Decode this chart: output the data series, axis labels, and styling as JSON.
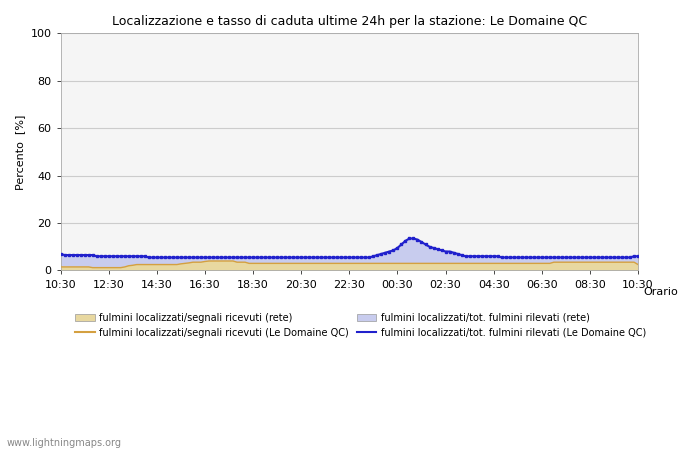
{
  "title": "Localizzazione e tasso di caduta ultime 24h per la stazione: Le Domaine QC",
  "ylabel": "Percento  [%]",
  "xlabel": "Orario",
  "ylim": [
    0,
    100
  ],
  "yticks": [
    0,
    20,
    40,
    60,
    80,
    100
  ],
  "yticks_minor": [
    10,
    30,
    50,
    70,
    90
  ],
  "xtick_labels": [
    "10:30",
    "12:30",
    "14:30",
    "16:30",
    "18:30",
    "20:30",
    "22:30",
    "00:30",
    "02:30",
    "04:30",
    "06:30",
    "08:30",
    "10:30"
  ],
  "bg_color": "#ffffff",
  "plot_bg_color": "#f5f5f5",
  "grid_color": "#cccccc",
  "watermark": "www.lightningmaps.org",
  "fill_rete_color": "#e8d8a0",
  "fill_domaine_color": "#c8ccee",
  "line_rete_color": "#d4a040",
  "line_domaine_color": "#2020cc",
  "n_points": 145,
  "fill_rete_y": [
    1.5,
    1.5,
    1.5,
    1.5,
    1.5,
    1.5,
    1.5,
    1.5,
    1.2,
    1.2,
    1.2,
    1.2,
    1.2,
    1.2,
    1.2,
    1.2,
    1.5,
    2.0,
    2.2,
    2.5,
    2.5,
    2.5,
    2.5,
    2.5,
    2.5,
    2.5,
    2.5,
    2.5,
    2.5,
    2.5,
    2.8,
    3.0,
    3.2,
    3.5,
    3.5,
    3.5,
    3.8,
    4.0,
    4.0,
    4.0,
    4.0,
    4.0,
    4.0,
    4.0,
    3.5,
    3.5,
    3.5,
    3.0,
    3.0,
    3.0,
    3.0,
    3.0,
    3.0,
    3.0,
    3.0,
    3.0,
    3.0,
    3.0,
    3.0,
    3.0,
    3.0,
    3.0,
    3.0,
    3.0,
    3.0,
    3.0,
    3.0,
    3.0,
    3.0,
    3.0,
    3.0,
    3.0,
    3.0,
    3.0,
    3.0,
    3.0,
    3.0,
    3.0,
    3.0,
    3.0,
    3.0,
    3.0,
    3.0,
    3.0,
    3.0,
    3.0,
    3.0,
    3.0,
    3.0,
    3.0,
    3.0,
    3.0,
    3.0,
    3.0,
    3.0,
    3.0,
    3.0,
    3.0,
    3.0,
    3.0,
    3.0,
    3.0,
    3.0,
    3.0,
    3.0,
    3.0,
    3.0,
    3.0,
    3.0,
    3.0,
    3.0,
    3.0,
    3.0,
    3.0,
    3.0,
    3.0,
    3.0,
    3.0,
    3.0,
    3.0,
    3.0,
    3.0,
    3.0,
    3.5,
    3.5,
    3.5,
    3.5,
    3.5,
    3.5,
    3.5,
    3.5,
    3.5,
    3.5,
    3.5,
    3.5,
    3.5,
    3.5,
    3.5,
    3.5,
    3.5,
    3.5,
    3.5,
    3.5,
    3.5,
    2.5
  ],
  "line_rete_y": [
    1.5,
    1.5,
    1.5,
    1.5,
    1.5,
    1.5,
    1.5,
    1.5,
    1.2,
    1.2,
    1.2,
    1.2,
    1.2,
    1.2,
    1.2,
    1.2,
    1.5,
    2.0,
    2.2,
    2.5,
    2.5,
    2.5,
    2.5,
    2.5,
    2.5,
    2.5,
    2.5,
    2.5,
    2.5,
    2.5,
    2.8,
    3.0,
    3.2,
    3.5,
    3.5,
    3.5,
    3.8,
    4.0,
    4.0,
    4.0,
    4.0,
    4.0,
    4.0,
    4.0,
    3.5,
    3.5,
    3.5,
    3.0,
    3.0,
    3.0,
    3.0,
    3.0,
    3.0,
    3.0,
    3.0,
    3.0,
    3.0,
    3.0,
    3.0,
    3.0,
    3.0,
    3.0,
    3.0,
    3.0,
    3.0,
    3.0,
    3.0,
    3.0,
    3.0,
    3.0,
    3.0,
    3.0,
    3.0,
    3.0,
    3.0,
    3.0,
    3.0,
    3.0,
    3.0,
    3.0,
    3.0,
    3.0,
    3.0,
    3.0,
    3.0,
    3.0,
    3.0,
    3.0,
    3.0,
    3.0,
    3.0,
    3.0,
    3.0,
    3.0,
    3.0,
    3.0,
    3.0,
    3.0,
    3.0,
    3.0,
    3.0,
    3.0,
    3.0,
    3.0,
    3.0,
    3.0,
    3.0,
    3.0,
    3.0,
    3.0,
    3.0,
    3.0,
    3.0,
    3.0,
    3.0,
    3.0,
    3.0,
    3.0,
    3.0,
    3.0,
    3.0,
    3.0,
    3.0,
    3.5,
    3.5,
    3.5,
    3.5,
    3.5,
    3.5,
    3.5,
    3.5,
    3.5,
    3.5,
    3.5,
    3.5,
    3.5,
    3.5,
    3.5,
    3.5,
    3.5,
    3.5,
    3.5,
    3.5,
    3.5,
    2.5
  ],
  "fill_domaine_y": [
    7,
    6.5,
    6.5,
    6.5,
    6.5,
    6.5,
    6.5,
    6.5,
    6.5,
    6.0,
    6.0,
    6.0,
    6.0,
    6.0,
    6.0,
    6.0,
    6.0,
    6.0,
    6.0,
    6.0,
    6.0,
    6.0,
    5.5,
    5.5,
    5.5,
    5.5,
    5.5,
    5.5,
    5.5,
    5.5,
    5.5,
    5.5,
    5.5,
    5.5,
    5.5,
    5.5,
    5.5,
    5.5,
    5.5,
    5.5,
    5.5,
    5.5,
    5.5,
    5.5,
    5.5,
    5.5,
    5.5,
    5.5,
    5.5,
    5.5,
    5.5,
    5.5,
    5.5,
    5.5,
    5.5,
    5.5,
    5.5,
    5.5,
    5.5,
    5.5,
    5.5,
    5.5,
    5.5,
    5.5,
    5.5,
    5.5,
    5.5,
    5.5,
    5.5,
    5.5,
    5.5,
    5.5,
    5.5,
    5.5,
    5.5,
    5.5,
    5.5,
    5.5,
    6.0,
    6.5,
    7.0,
    7.5,
    8.0,
    8.5,
    9.5,
    11.0,
    12.5,
    13.5,
    13.5,
    13.0,
    12.0,
    11.0,
    10.0,
    9.5,
    9.0,
    8.5,
    8.0,
    8.0,
    7.5,
    7.0,
    6.5,
    6.0,
    6.0,
    6.0,
    6.0,
    6.0,
    6.0,
    6.0,
    6.0,
    6.0,
    5.5,
    5.5,
    5.5,
    5.5,
    5.5,
    5.5,
    5.5,
    5.5,
    5.5,
    5.5,
    5.5,
    5.5,
    5.5,
    5.5,
    5.5,
    5.5,
    5.5,
    5.5,
    5.5,
    5.5,
    5.5,
    5.5,
    5.5,
    5.5,
    5.5,
    5.5,
    5.5,
    5.5,
    5.5,
    5.5,
    5.5,
    5.5,
    5.5,
    6.0,
    6.0
  ],
  "line_domaine_y": [
    7,
    6.5,
    6.5,
    6.5,
    6.5,
    6.5,
    6.5,
    6.5,
    6.5,
    6.0,
    6.0,
    6.0,
    6.0,
    6.0,
    6.0,
    6.0,
    6.0,
    6.0,
    6.0,
    6.0,
    6.0,
    6.0,
    5.5,
    5.5,
    5.5,
    5.5,
    5.5,
    5.5,
    5.5,
    5.5,
    5.5,
    5.5,
    5.5,
    5.5,
    5.5,
    5.5,
    5.5,
    5.5,
    5.5,
    5.5,
    5.5,
    5.5,
    5.5,
    5.5,
    5.5,
    5.5,
    5.5,
    5.5,
    5.5,
    5.5,
    5.5,
    5.5,
    5.5,
    5.5,
    5.5,
    5.5,
    5.5,
    5.5,
    5.5,
    5.5,
    5.5,
    5.5,
    5.5,
    5.5,
    5.5,
    5.5,
    5.5,
    5.5,
    5.5,
    5.5,
    5.5,
    5.5,
    5.5,
    5.5,
    5.5,
    5.5,
    5.5,
    5.5,
    6.0,
    6.5,
    7.0,
    7.5,
    8.0,
    8.5,
    9.5,
    11.0,
    12.5,
    13.5,
    13.5,
    13.0,
    12.0,
    11.0,
    10.0,
    9.5,
    9.0,
    8.5,
    8.0,
    8.0,
    7.5,
    7.0,
    6.5,
    6.0,
    6.0,
    6.0,
    6.0,
    6.0,
    6.0,
    6.0,
    6.0,
    6.0,
    5.5,
    5.5,
    5.5,
    5.5,
    5.5,
    5.5,
    5.5,
    5.5,
    5.5,
    5.5,
    5.5,
    5.5,
    5.5,
    5.5,
    5.5,
    5.5,
    5.5,
    5.5,
    5.5,
    5.5,
    5.5,
    5.5,
    5.5,
    5.5,
    5.5,
    5.5,
    5.5,
    5.5,
    5.5,
    5.5,
    5.5,
    5.5,
    5.5,
    6.0,
    6.0
  ]
}
